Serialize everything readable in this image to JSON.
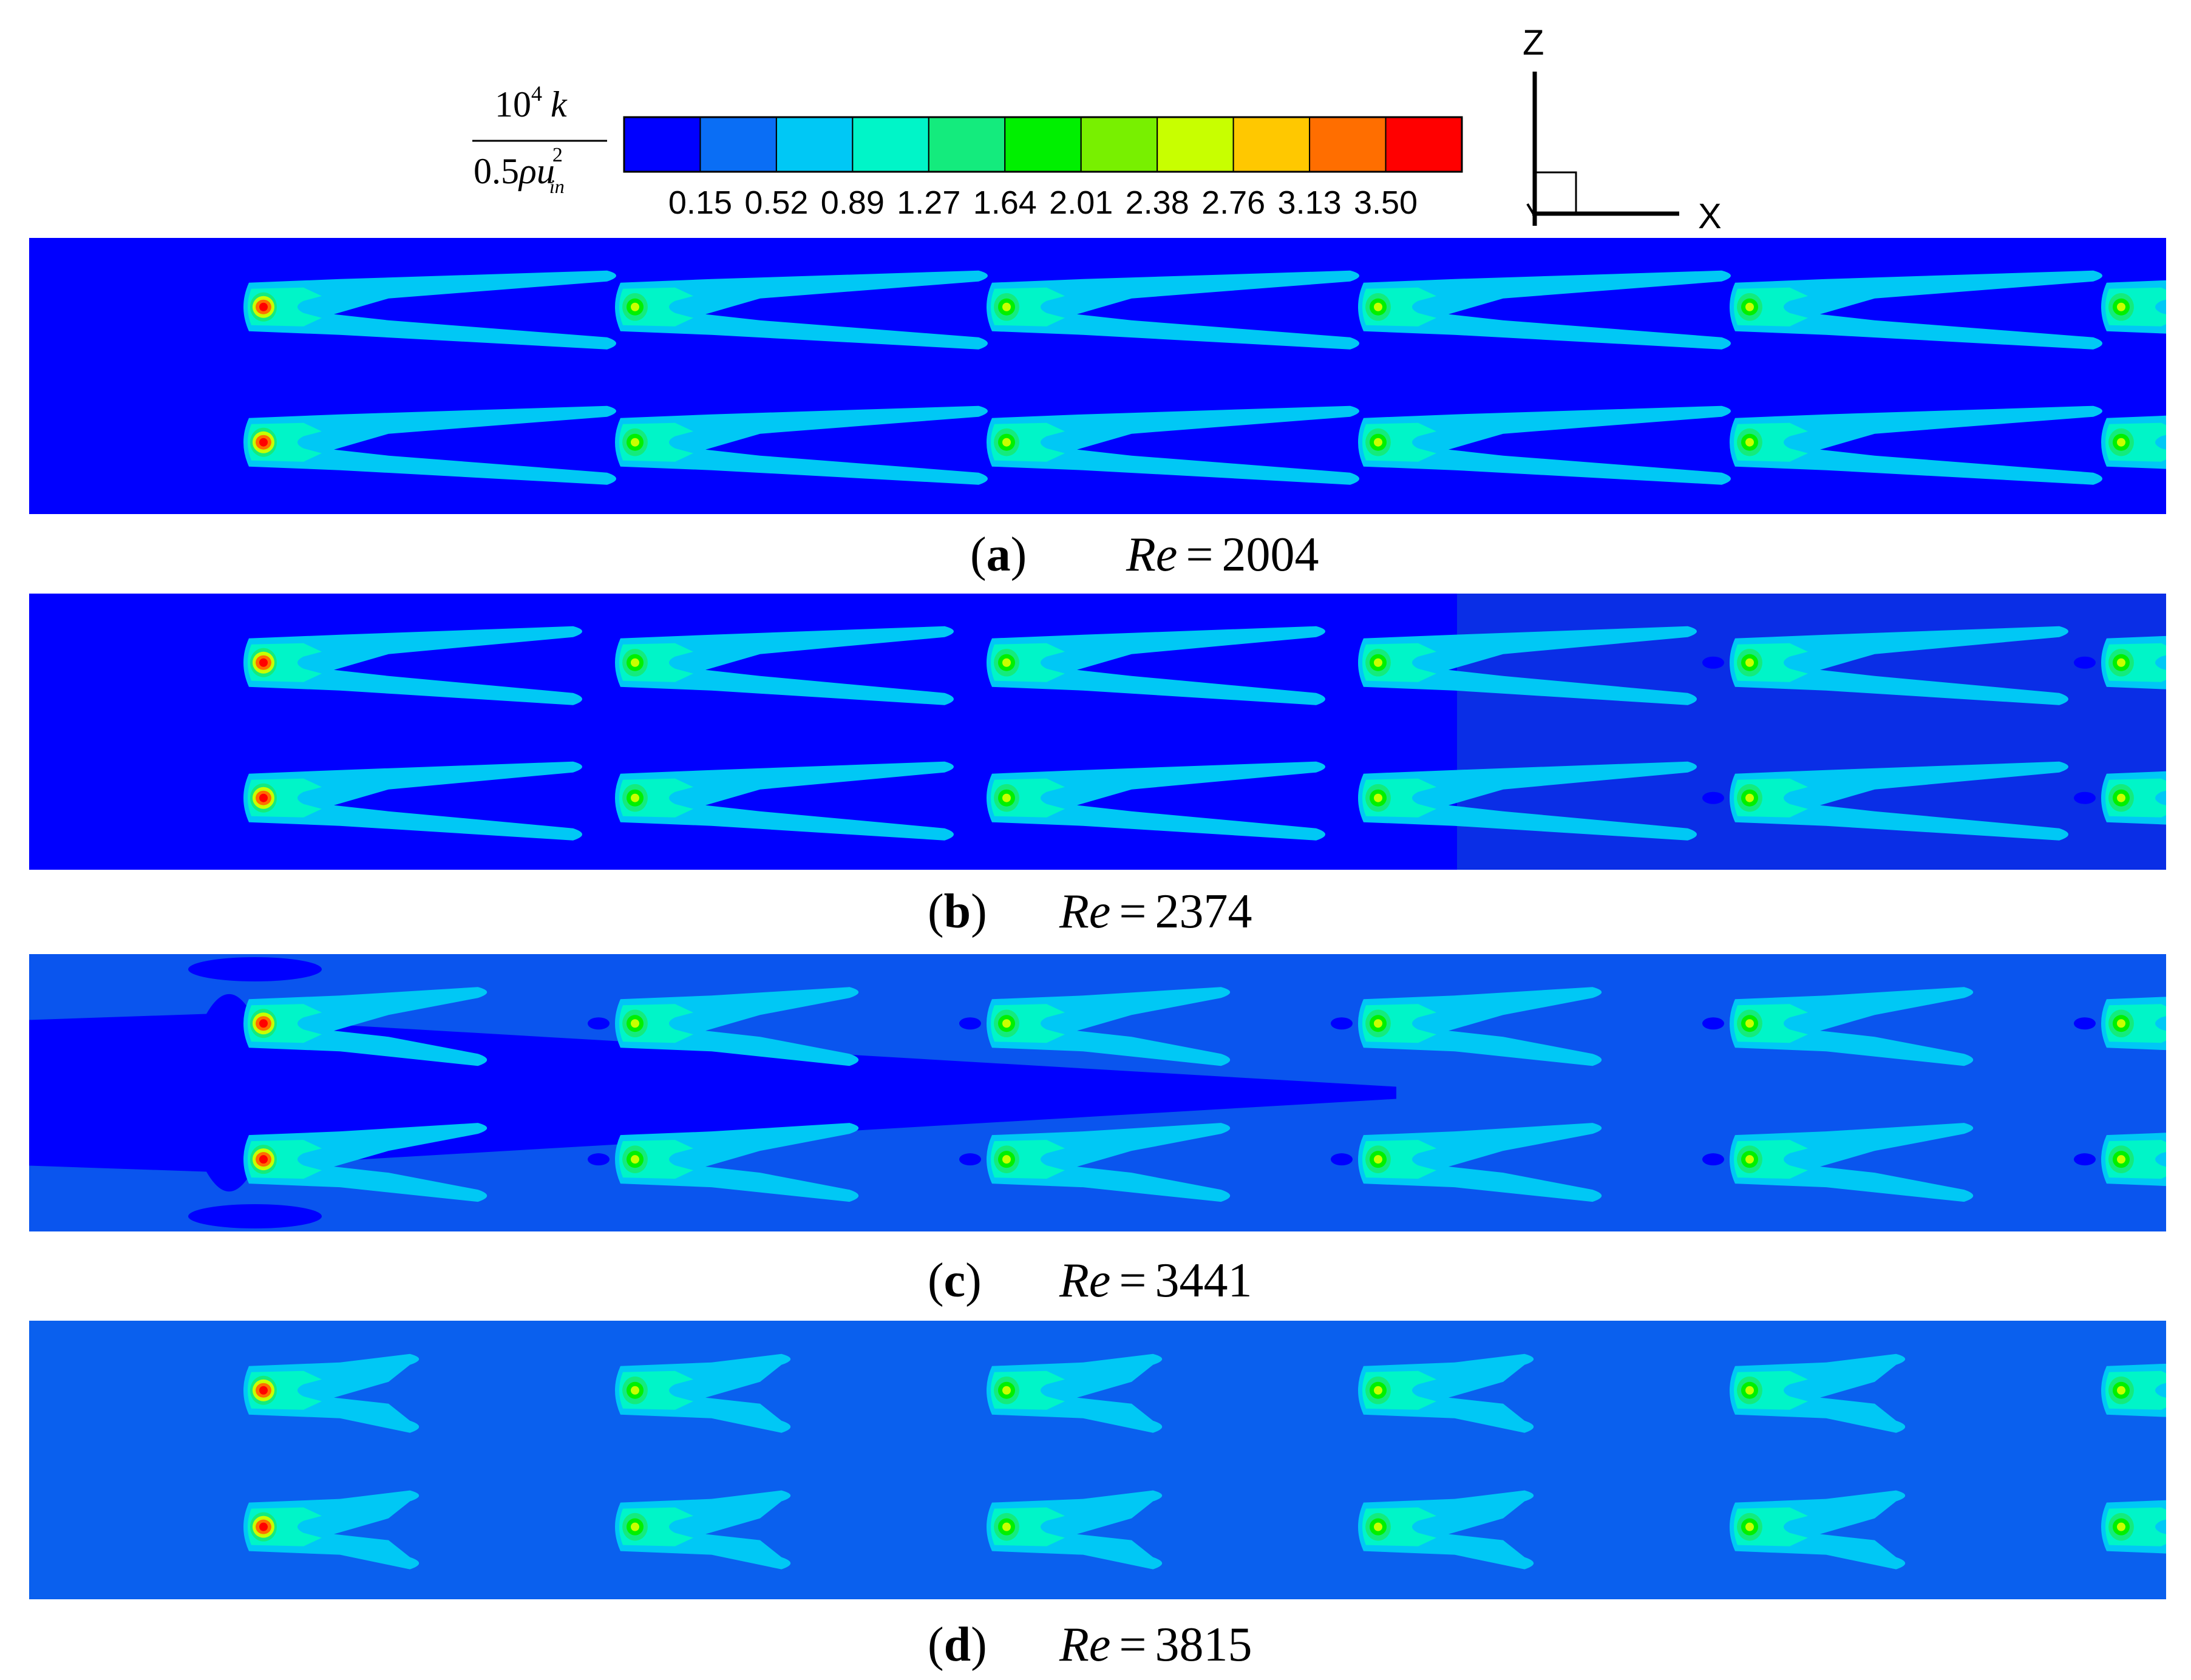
{
  "legend": {
    "label_top": "10",
    "label_top_exp": "4",
    "label_top_var": "k",
    "label_bottom": "0.5",
    "label_bottom_rho": "ρ",
    "label_bottom_var": "u",
    "label_bottom_exp": "2",
    "label_bottom_sub": "in",
    "colors": [
      "#0000ff",
      "#0a6ef5",
      "#00c8f5",
      "#00f5c8",
      "#14eb7d",
      "#00f000",
      "#78f000",
      "#c8ff00",
      "#ffc800",
      "#ff6e00",
      "#ff0000"
    ],
    "ticks": [
      "0.15",
      "0.52",
      "0.89",
      "1.27",
      "1.64",
      "2.01",
      "2.38",
      "2.76",
      "3.13",
      "3.50"
    ]
  },
  "axes": {
    "z_label": "Z",
    "x_label": "X"
  },
  "panels": [
    {
      "letter": "a",
      "re_label": "Re",
      "equals": "=",
      "re_value": "2004",
      "background": "#0000ff"
    },
    {
      "letter": "b",
      "re_label": "Re",
      "equals": "=",
      "re_value": "2374",
      "background": "#0a2ee6"
    },
    {
      "letter": "c",
      "re_label": "Re",
      "equals": "=",
      "re_value": "3441",
      "background": "#0a55ee"
    },
    {
      "letter": "d",
      "re_label": "Re",
      "equals": "=",
      "re_value": "3815",
      "background": "#0a60ee"
    }
  ],
  "colors": {
    "level1": "#0a6ef5",
    "level2": "#00c8f5",
    "level3": "#00f5c8",
    "level4": "#14eb7d",
    "level5": "#00f000",
    "level6": "#c8ff00",
    "level7": "#ffc800",
    "level8": "#ff6e00",
    "level9": "#ff0000"
  }
}
